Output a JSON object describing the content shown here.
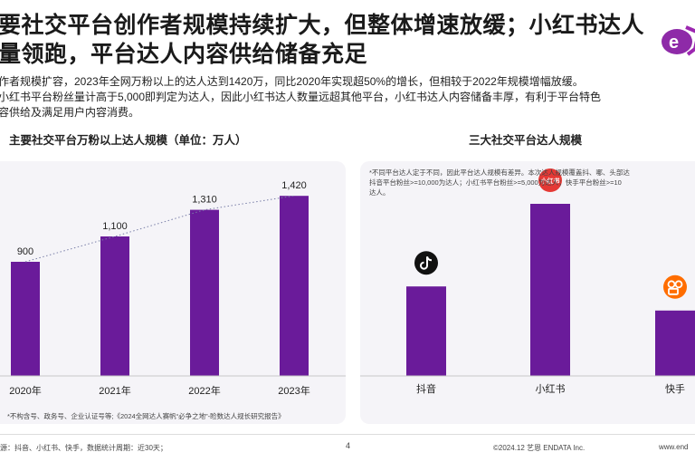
{
  "title_line1": "要社交平台创作者规模持续扩大，但整体增速放缓；小红书达人",
  "title_line2": "量领跑，平台达人内容供给储备充足",
  "bullet1": "作者规模扩容，2023年全网万粉以上的达人达到1420万，同比2020年实现超50%的增长，但相较于2022年规模增幅放缓。",
  "bullet2a": "小红书平台粉丝量计高于5,000即判定为达人，因此小红书达人数量远超其他平台，小红书达人内容储备丰厚，有利于平台特色",
  "bullet2b": "容供给及满足用户内容消费。",
  "left_chart_title": "主要社交平台万粉以上达人规模（单位：万人）",
  "right_chart_title": "三大社交平台达人规模",
  "left_note": "*不构含号、政务号、企业认证号等;《2024全网达人赛帆“必争之地”-睑数达人规长研究报告》",
  "right_note_line1": "*不同平台达人定于不同，因此平台达人规模有差异。本次达人规模覆盖抖、哪、头部达",
  "right_note_line2": "抖音平台粉丝>=10,000为达人；小红书平台粉丝>=5,000为达人；快手平台粉丝>=10",
  "right_note_line3": "达人。",
  "xhs_badge_text": "小红书",
  "chart_data": [
    {
      "type": "bar",
      "title": "主要社交平台万粉以上达人规模（单位：万人）",
      "categories": [
        "2020年",
        "2021年",
        "2022年",
        "2023年"
      ],
      "values": [
        900,
        1100,
        1310,
        1420
      ],
      "value_labels": [
        "900",
        "1,100",
        "1,310",
        "1,420"
      ],
      "ylim": [
        0,
        1550
      ],
      "trendline": "dotted",
      "color": "#6a1b9a"
    },
    {
      "type": "bar",
      "title": "三大社交平台达人规模",
      "categories": [
        "抖音",
        "小红书",
        "快手"
      ],
      "values": [
        0.52,
        1.0,
        0.38
      ],
      "ylim": [
        0,
        1.1
      ],
      "icons": [
        "douyin-icon",
        "xiaohongshu-icon",
        "kuaishou-icon"
      ],
      "color": "#6a1b9a"
    }
  ],
  "footer_left": "源：抖音、小红书、快手，数据统计周期：近30天；",
  "page_number": "4",
  "footer_right": "©2024.12 艺恩 ENDATA Inc.",
  "footer_url": "www.end",
  "colors": {
    "bar": "#6a1b9a",
    "panel": "#f5f4f8",
    "accent": "#8e2aa8"
  }
}
